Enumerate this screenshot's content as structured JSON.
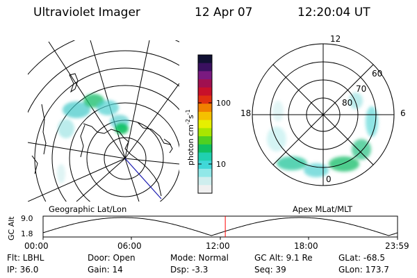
{
  "header": {
    "title": "Ultraviolet Imager",
    "date": "12 Apr 07",
    "time": "12:20:04 UT"
  },
  "geo_map": {
    "label": "Geographic Lat/Lon"
  },
  "polar_map": {
    "label": "Apex MLat/MLT",
    "mlt_labels": [
      "12",
      "18",
      "6",
      "0"
    ],
    "lat_labels": [
      "60",
      "70",
      "80"
    ]
  },
  "colorbar": {
    "ticks": [
      "100",
      "10"
    ],
    "unit_parts": [
      "photon cm",
      "-2",
      "s",
      "-1"
    ],
    "colors": [
      "#111133",
      "#3a1060",
      "#7a1a80",
      "#a01050",
      "#c8102a",
      "#e03010",
      "#f08000",
      "#f5c000",
      "#e6ef00",
      "#a8e600",
      "#50d020",
      "#10c060",
      "#20d0b0",
      "#40d8d8",
      "#90e8e8",
      "#cfeeee",
      "#f0f0f0"
    ]
  },
  "altitude_strip": {
    "axis_label": "GC Alt",
    "y_ticks": [
      "9.0",
      "1.8"
    ],
    "x_ticks": [
      "00:00",
      "06:00",
      "12:00",
      "18:00",
      "23:59"
    ],
    "current_time_fraction": 0.514,
    "marker_color": "#ff0000"
  },
  "status": {
    "flt": "Flt: LBHL",
    "ip": "IP: 36.0",
    "door": "Door: Open",
    "gain": "Gain: 14",
    "mode": "Mode: Normal",
    "dsp": "Dsp:    -3.3",
    "gcalt": "GC Alt: 9.1 Re",
    "seq": "Seq: 39",
    "glat": "GLat: -68.5",
    "glon": "GLon: 173.7"
  }
}
